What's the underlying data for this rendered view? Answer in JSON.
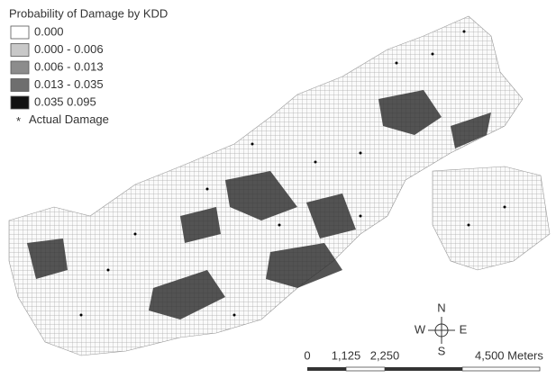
{
  "legend": {
    "title": "Probability of Damage by KDD",
    "items": [
      {
        "label": "0.000",
        "color": "#ffffff"
      },
      {
        "label": "0.000 - 0.006",
        "color": "#c8c8c8"
      },
      {
        "label": "0.006 - 0.013",
        "color": "#8c8c8c"
      },
      {
        "label": "0.013 - 0.035",
        "color": "#6e6e6e"
      },
      {
        "label": "0.035 0.095",
        "color": "#111111"
      }
    ],
    "points_label": "Actual Damage",
    "points_symbol": "*"
  },
  "compass": {
    "n": "N",
    "w": "W",
    "e": "E",
    "s": "S"
  },
  "scale_bar": {
    "labels": [
      "0",
      "1,125",
      "2,250",
      "4,500 Meters"
    ]
  }
}
